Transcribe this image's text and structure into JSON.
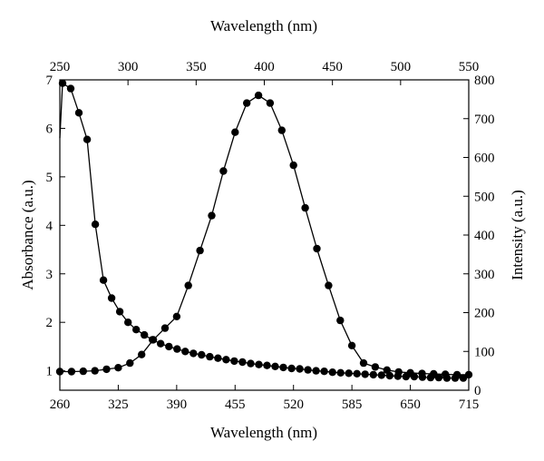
{
  "chart_data": {
    "type": "line",
    "title": "",
    "x_bottom": {
      "label": "Wavelength (nm)",
      "range": [
        260,
        715
      ],
      "ticks": [
        260,
        325,
        390,
        455,
        520,
        585,
        650,
        715
      ]
    },
    "x_top": {
      "label": "Wavelength (nm)",
      "range": [
        250,
        550
      ],
      "ticks": [
        250,
        300,
        350,
        400,
        450,
        500,
        550
      ]
    },
    "y_left": {
      "label": "Absorbance (a.u.)",
      "range": [
        0.6,
        7.0
      ],
      "ticks": [
        1,
        2,
        3,
        4,
        5,
        6,
        7
      ]
    },
    "y_right": {
      "label": "Intensity (a.u.)",
      "range": [
        0,
        800
      ],
      "ticks": [
        0,
        100,
        200,
        300,
        400,
        500,
        600,
        700,
        800
      ]
    },
    "grid": false,
    "legend": "none",
    "color": "#000000",
    "series": [
      {
        "x_axis": "top",
        "y_axis": "left",
        "line_start": {
          "x": 250,
          "y": 5.8
        },
        "x": [
          252,
          258,
          264,
          270,
          276,
          282,
          288,
          294,
          300,
          306,
          312,
          318,
          324,
          330,
          336,
          342,
          348,
          354,
          360,
          366,
          372,
          378,
          384,
          390,
          396,
          402,
          408,
          414,
          420,
          426,
          432,
          438,
          444,
          450,
          456,
          462,
          468,
          474,
          480,
          486,
          492,
          498,
          504,
          510,
          516,
          522,
          528,
          534,
          540,
          546
        ],
        "y": [
          6.93,
          6.82,
          6.32,
          5.77,
          4.02,
          2.87,
          2.5,
          2.22,
          2.0,
          1.85,
          1.74,
          1.64,
          1.56,
          1.5,
          1.45,
          1.4,
          1.36,
          1.33,
          1.29,
          1.26,
          1.23,
          1.2,
          1.18,
          1.15,
          1.13,
          1.11,
          1.09,
          1.07,
          1.05,
          1.04,
          1.02,
          1.0,
          0.99,
          0.97,
          0.96,
          0.95,
          0.94,
          0.93,
          0.92,
          0.91,
          0.9,
          0.89,
          0.88,
          0.88,
          0.87,
          0.86,
          0.86,
          0.85,
          0.85,
          0.85
        ]
      },
      {
        "x_axis": "bottom",
        "y_axis": "right",
        "x": [
          260,
          273,
          286,
          299,
          312,
          325,
          338,
          351,
          364,
          377,
          390,
          403,
          416,
          429,
          442,
          455,
          468,
          481,
          494,
          507,
          520,
          533,
          546,
          559,
          572,
          585,
          598,
          611,
          624,
          637,
          650,
          663,
          676,
          689,
          702,
          715
        ],
        "y": [
          48,
          48,
          49,
          50,
          54,
          58,
          70,
          92,
          130,
          160,
          190,
          270,
          360,
          450,
          565,
          665,
          740,
          760,
          740,
          670,
          580,
          470,
          365,
          270,
          180,
          115,
          70,
          60,
          52,
          47,
          45,
          43,
          42,
          41,
          40,
          40
        ]
      }
    ]
  }
}
